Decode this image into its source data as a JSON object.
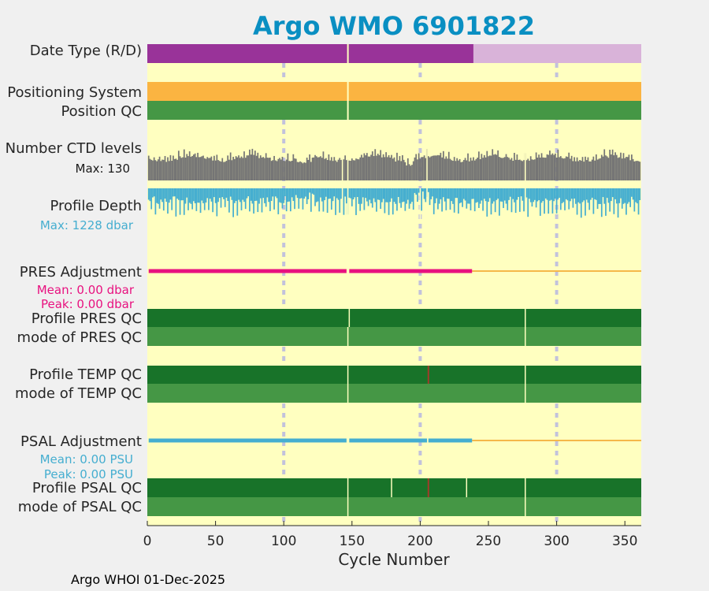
{
  "chart_data": {
    "type": "bar",
    "title": "Argo WMO 6901822",
    "xlabel": "Cycle Number",
    "xlim": [
      0,
      362
    ],
    "xticks": [
      0,
      50,
      100,
      150,
      200,
      250,
      300,
      350
    ],
    "xtick_labels": [
      "0",
      "50",
      "100",
      "150",
      "200",
      "250",
      "300",
      "350"
    ],
    "footer": "Argo WHOI 01-Dec-2025",
    "colors": {
      "title": "#0a8fc2",
      "panel_bg": "#ffffc0",
      "mode_R": "#993399",
      "mode_D": "#d9b3d9",
      "orange": "#fbb441",
      "qc_dark": "#187329",
      "qc_mid": "#459745",
      "ctd": "#757575",
      "depth": "#45aed0",
      "pres": "#e8117f",
      "psal": "#45aed0",
      "adj_line": "#f5b84a",
      "grid": "#c2c2dc",
      "bad": "#a03c2a"
    },
    "rows": {
      "date_type": {
        "label": "Date Type (R/D)",
        "realtime_range": [
          0,
          239
        ],
        "delayed_range": [
          239,
          362
        ],
        "gap_cycles": [
          147
        ]
      },
      "positioning": {
        "label": "Positioning System",
        "gap_cycles": [
          147
        ]
      },
      "position_qc": {
        "label": "Position QC",
        "gap_cycles": [
          147
        ]
      },
      "ctd_levels": {
        "label": "Number CTD levels",
        "max_label": "Max: 130",
        "max_value": 130,
        "gap_cycles": [
          143,
          147,
          205,
          277
        ]
      },
      "profile_depth": {
        "label": "Profile Depth",
        "max_label": "Max: 1228 dbar",
        "max_value": 1228,
        "gap_cycles": [
          143,
          147,
          200,
          205,
          277
        ]
      },
      "pres_adjustment": {
        "label": "PRES Adjustment",
        "mean_label": "Mean: 0.00 dbar",
        "peak_label": "Peak: 0.00 dbar",
        "mean": 0.0,
        "peak": 0.0,
        "adjusted_segments": [
          [
            1,
            146
          ],
          [
            148,
            238
          ]
        ],
        "unadjusted_range": [
          238,
          362
        ]
      },
      "profile_pres_qc": {
        "label": "Profile PRES QC",
        "gap_cycles": [
          148,
          277
        ]
      },
      "mode_pres_qc": {
        "label": "mode of PRES QC",
        "gap_cycles": [
          147,
          277
        ]
      },
      "profile_temp_qc": {
        "label": "Profile TEMP QC",
        "gap_cycles": [
          147,
          277
        ],
        "bad_cycles": [
          206
        ]
      },
      "mode_temp_qc": {
        "label": "mode of TEMP QC",
        "gap_cycles": [
          147,
          277
        ]
      },
      "psal_adjustment": {
        "label": "PSAL Adjustment",
        "mean_label": "Mean: 0.00 PSU",
        "peak_label": "Peak: 0.00 PSU",
        "mean": 0.0,
        "peak": 0.0,
        "adjusted_segments": [
          [
            1,
            146
          ],
          [
            148,
            205
          ],
          [
            206,
            238
          ]
        ],
        "unadjusted_range": [
          238,
          362
        ]
      },
      "profile_psal_qc": {
        "label": "Profile PSAL QC",
        "gap_cycles": [
          147,
          179,
          234,
          277
        ],
        "bad_cycles": [
          206
        ]
      },
      "mode_psal_qc": {
        "label": "mode of PSAL QC",
        "gap_cycles": [
          147,
          277
        ]
      }
    }
  }
}
